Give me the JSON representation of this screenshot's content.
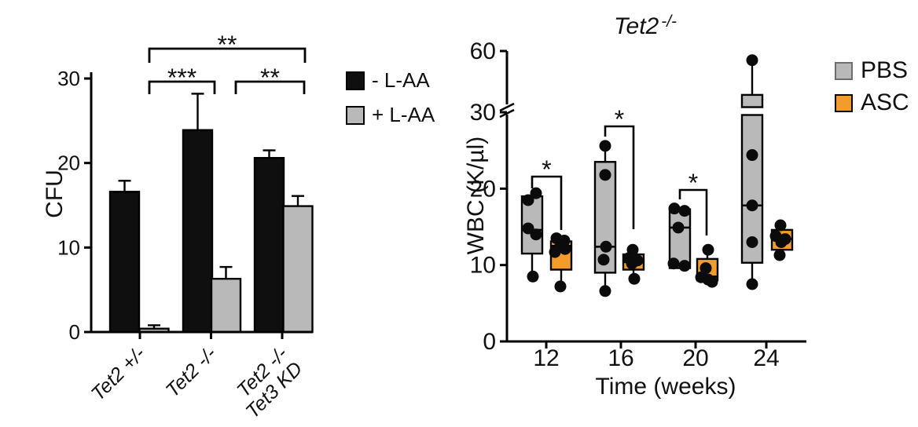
{
  "figure": {
    "background": "#ffffff"
  },
  "colors": {
    "black_bar": "#0f0f0f",
    "gray": "#b9b9b9",
    "orange": "#f39b2d",
    "ink": "#000000"
  },
  "chart_data": [
    {
      "id": "cfu-colony-assay",
      "type": "bar",
      "title": "",
      "ylabel": "CFU",
      "xlabel": "",
      "ylim": [
        0,
        30
      ],
      "yticks": [
        0,
        10,
        20,
        30
      ],
      "categories": [
        "Tet2 +/-",
        "Tet2 -/-",
        "Tet2 -/-\nTet3 KD"
      ],
      "series": [
        {
          "name": "- L-AA",
          "color": "#0f0f0f",
          "values": [
            16.6,
            23.9,
            20.6
          ],
          "errors": [
            1.3,
            4.3,
            0.9
          ]
        },
        {
          "name": "+ L-AA",
          "color": "#b9b9b9",
          "values": [
            0.4,
            6.3,
            14.9
          ],
          "errors": [
            0.4,
            1.4,
            1.2
          ]
        }
      ],
      "significance": [
        {
          "label": "***",
          "between": [
            "Tet2 +/-",
            "Tet2 -/-"
          ]
        },
        {
          "label": "**",
          "between": [
            "Tet2 -/-",
            "Tet2 -/- Tet3 KD"
          ]
        },
        {
          "label": "**",
          "between": [
            "Tet2 +/-",
            "Tet2 -/- Tet3 KD"
          ]
        }
      ],
      "legend_position": "right"
    },
    {
      "id": "wbc-timecourse",
      "type": "box",
      "title_main": "Tet2",
      "title_sup": "-/-",
      "ylabel": "WBC (K/µl)",
      "xlabel": "Time (weeks)",
      "ylim": [
        0,
        60
      ],
      "yticks": [
        0,
        10,
        20,
        30
      ],
      "ytick_after_break": 60,
      "axis_break": {
        "between": [
          30,
          60
        ]
      },
      "categories": [
        "12",
        "16",
        "20",
        "24"
      ],
      "series": [
        {
          "name": "PBS",
          "color": "#b9b9b9",
          "boxes": [
            {
              "q1": 11.5,
              "median": 14.6,
              "q3": 19.0,
              "whisker_low": 8.5,
              "whisker_high": 19.3,
              "points": [
                19.4,
                18.5,
                14.8,
                14.0,
                8.5
              ]
            },
            {
              "q1": 9.0,
              "median": 12.4,
              "q3": 23.5,
              "whisker_low": 6.6,
              "whisker_high": 25.6,
              "points": [
                25.6,
                21.8,
                12.4,
                10.7,
                6.6
              ]
            },
            {
              "q1": 9.6,
              "median": 14.9,
              "q3": 17.3,
              "whisker_low": 9.6,
              "whisker_high": 17.3,
              "points": [
                17.4,
                17.1,
                14.9,
                10.2,
                9.9
              ]
            },
            {
              "q1": 10.3,
              "median": 17.8,
              "q3": 38.5,
              "whisker_low": 7.5,
              "whisker_high": 55.5,
              "points": [
                55.5,
                24.4,
                17.8,
                13.0,
                7.5
              ]
            }
          ]
        },
        {
          "name": "ASC",
          "color": "#f39b2d",
          "boxes": [
            {
              "q1": 9.4,
              "median": 12.5,
              "q3": 13.1,
              "whisker_low": 7.2,
              "whisker_high": 13.1,
              "points": [
                13.5,
                13.2,
                12.5,
                12.1,
                11.7,
                7.2
              ]
            },
            {
              "q1": 9.4,
              "median": 10.4,
              "q3": 11.4,
              "whisker_low": 8.2,
              "whisker_high": 12.0,
              "points": [
                12.0,
                10.9,
                10.6,
                10.2,
                8.2
              ]
            },
            {
              "q1": 8.0,
              "median": 8.5,
              "q3": 10.8,
              "whisker_low": 8.0,
              "whisker_high": 12.0,
              "points": [
                12.0,
                9.6,
                8.4,
                8.1,
                7.8
              ]
            },
            {
              "q1": 12.0,
              "median": 13.4,
              "q3": 14.6,
              "whisker_low": 11.3,
              "whisker_high": 15.2,
              "points": [
                15.2,
                13.8,
                13.4,
                13.0,
                11.3
              ]
            }
          ]
        }
      ],
      "significance": [
        {
          "label": "*",
          "week": "12"
        },
        {
          "label": "*",
          "week": "16"
        },
        {
          "label": "*",
          "week": "20"
        }
      ],
      "legend_position": "right"
    }
  ]
}
